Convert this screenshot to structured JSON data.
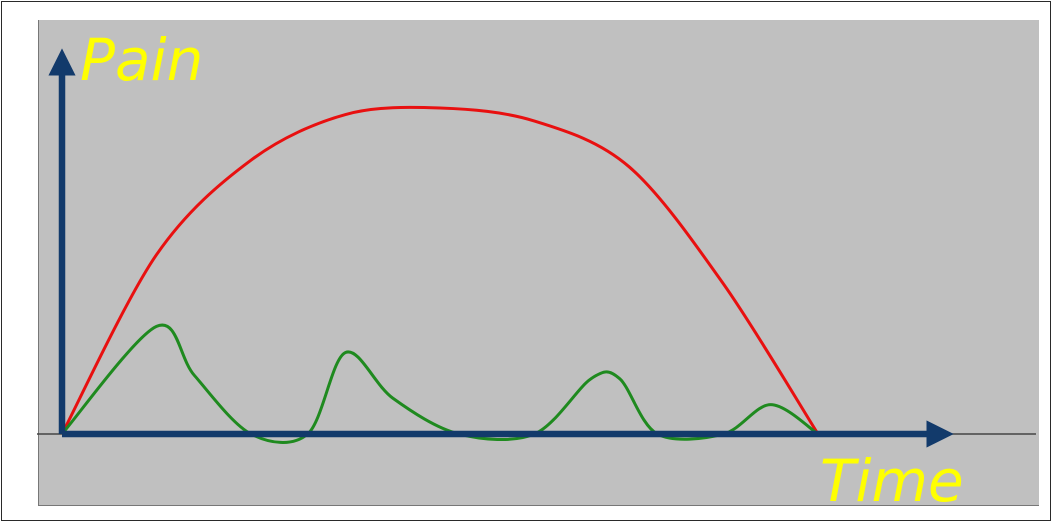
{
  "chart_data": {
    "type": "line",
    "ylabel": "Pain",
    "xlabel": "Time",
    "colors": {
      "background": "#c0c0c0",
      "axes": "#123a6b",
      "label_text": "#ffff00"
    },
    "series": [
      {
        "color": "#e81010",
        "x": [
          0,
          0.5,
          1,
          1.5,
          2,
          2.5,
          3,
          3.5,
          4
        ],
        "y": [
          0,
          0.55,
          0.84,
          0.98,
          1.0,
          0.96,
          0.82,
          0.46,
          0
        ]
      },
      {
        "color": "#1f8a1f",
        "x": [
          0,
          0.5,
          0.7,
          1,
          1.3,
          1.5,
          1.75,
          2.1,
          2.5,
          2.8,
          2.95,
          3.15,
          3.5,
          3.75,
          4
        ],
        "y": [
          0,
          0.33,
          0.18,
          0,
          0,
          0.25,
          0.11,
          0,
          0,
          0.17,
          0.17,
          0,
          0,
          0.09,
          0
        ]
      }
    ]
  }
}
